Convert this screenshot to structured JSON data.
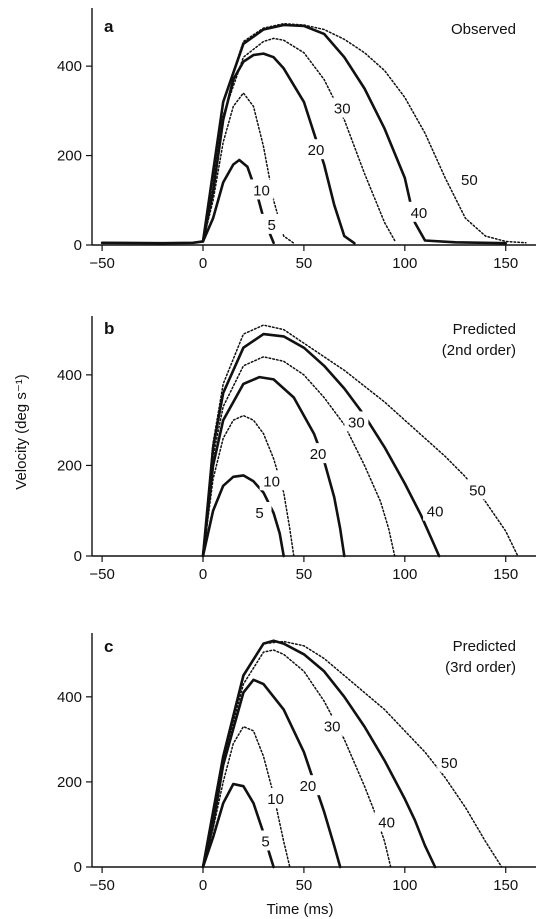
{
  "ylabel": "Velocity (deg s⁻¹)",
  "xlabel": "Time (ms)",
  "chart_data": [
    {
      "type": "line",
      "panel": "a",
      "title": "Observed",
      "xlim": [
        -55,
        165
      ],
      "ylim": [
        0,
        530
      ],
      "xticks": [
        -50,
        0,
        50,
        100,
        150
      ],
      "xtick_labels": [
        "−50",
        "0",
        "50",
        "100",
        "150"
      ],
      "yticks": [
        0,
        200,
        400
      ],
      "ytick_labels": [
        "0",
        "200",
        "400"
      ],
      "series": [
        {
          "name": "5",
          "style": "solid",
          "x": [
            -50,
            -20,
            -5,
            0,
            5,
            10,
            15,
            18,
            22,
            27,
            30,
            35
          ],
          "y": [
            5,
            4,
            5,
            8,
            60,
            140,
            180,
            190,
            175,
            110,
            60,
            5
          ]
        },
        {
          "name": "10",
          "style": "dotted",
          "x": [
            0,
            5,
            10,
            15,
            20,
            25,
            30,
            35,
            40,
            45
          ],
          "y": [
            8,
            100,
            230,
            310,
            340,
            310,
            220,
            100,
            20,
            4
          ]
        },
        {
          "name": "20",
          "style": "solid",
          "x": [
            0,
            5,
            10,
            15,
            20,
            25,
            30,
            35,
            40,
            50,
            55,
            60,
            65,
            70,
            75
          ],
          "y": [
            8,
            120,
            280,
            370,
            410,
            425,
            428,
            420,
            395,
            320,
            250,
            180,
            90,
            20,
            4
          ]
        },
        {
          "name": "30",
          "style": "dotted",
          "x": [
            0,
            10,
            20,
            30,
            35,
            40,
            50,
            60,
            70,
            80,
            90,
            95
          ],
          "y": [
            8,
            290,
            420,
            455,
            462,
            458,
            430,
            370,
            280,
            160,
            50,
            10
          ]
        },
        {
          "name": "40",
          "style": "solid",
          "x": [
            0,
            10,
            20,
            30,
            40,
            50,
            60,
            70,
            80,
            90,
            100,
            105,
            110,
            125,
            150
          ],
          "y": [
            8,
            320,
            450,
            482,
            492,
            490,
            472,
            420,
            350,
            260,
            150,
            50,
            10,
            6,
            4
          ]
        },
        {
          "name": "50",
          "style": "dotted",
          "x": [
            0,
            10,
            20,
            30,
            40,
            50,
            60,
            70,
            80,
            90,
            100,
            110,
            120,
            130,
            140,
            150,
            160
          ],
          "y": [
            8,
            320,
            455,
            485,
            495,
            492,
            482,
            460,
            430,
            390,
            330,
            250,
            150,
            60,
            20,
            8,
            5
          ]
        }
      ],
      "curve_labels": [
        {
          "text": "5",
          "x": 34,
          "y": 45
        },
        {
          "text": "10",
          "x": 29,
          "y": 122
        },
        {
          "text": "20",
          "x": 56,
          "y": 212
        },
        {
          "text": "30",
          "x": 69,
          "y": 305
        },
        {
          "text": "40",
          "x": 107,
          "y": 72
        },
        {
          "text": "50",
          "x": 132,
          "y": 145
        }
      ]
    },
    {
      "type": "line",
      "panel": "b",
      "title": "Predicted (2nd order)",
      "title_lines": [
        "Predicted",
        "(2nd order)"
      ],
      "xlim": [
        -55,
        165
      ],
      "ylim": [
        0,
        530
      ],
      "xticks": [
        -50,
        0,
        50,
        100,
        150
      ],
      "xtick_labels": [
        "−50",
        "0",
        "50",
        "100",
        "150"
      ],
      "yticks": [
        0,
        200,
        400
      ],
      "ytick_labels": [
        "0",
        "200",
        "400"
      ],
      "series": [
        {
          "name": "5",
          "style": "solid",
          "x": [
            0,
            5,
            10,
            15,
            20,
            25,
            30,
            35,
            38,
            40
          ],
          "y": [
            0,
            100,
            155,
            175,
            178,
            165,
            140,
            95,
            50,
            0
          ]
        },
        {
          "name": "10",
          "style": "dotted",
          "x": [
            0,
            5,
            10,
            15,
            20,
            25,
            30,
            35,
            40,
            43,
            45
          ],
          "y": [
            0,
            170,
            260,
            300,
            310,
            300,
            270,
            215,
            140,
            60,
            0
          ]
        },
        {
          "name": "20",
          "style": "solid",
          "x": [
            0,
            5,
            10,
            20,
            28,
            35,
            45,
            55,
            60,
            65,
            68,
            70
          ],
          "y": [
            0,
            200,
            300,
            380,
            395,
            390,
            350,
            270,
            210,
            130,
            60,
            0
          ]
        },
        {
          "name": "30",
          "style": "dotted",
          "x": [
            0,
            5,
            10,
            20,
            30,
            40,
            50,
            60,
            70,
            80,
            88,
            92,
            95
          ],
          "y": [
            0,
            220,
            330,
            420,
            440,
            430,
            400,
            350,
            290,
            200,
            120,
            60,
            0
          ]
        },
        {
          "name": "40",
          "style": "solid",
          "x": [
            0,
            5,
            10,
            20,
            30,
            40,
            50,
            60,
            70,
            80,
            90,
            100,
            108,
            113,
            117
          ],
          "y": [
            0,
            240,
            360,
            460,
            490,
            485,
            460,
            420,
            370,
            310,
            240,
            160,
            90,
            40,
            0
          ]
        },
        {
          "name": "50",
          "style": "dotted",
          "x": [
            0,
            5,
            10,
            20,
            30,
            40,
            50,
            60,
            70,
            80,
            90,
            100,
            110,
            120,
            130,
            140,
            150,
            156
          ],
          "y": [
            0,
            250,
            380,
            490,
            510,
            500,
            470,
            440,
            410,
            375,
            340,
            300,
            260,
            220,
            175,
            120,
            55,
            0
          ]
        }
      ],
      "curve_labels": [
        {
          "text": "5",
          "x": 28,
          "y": 95
        },
        {
          "text": "10",
          "x": 34,
          "y": 165
        },
        {
          "text": "20",
          "x": 57,
          "y": 225
        },
        {
          "text": "30",
          "x": 76,
          "y": 295
        },
        {
          "text": "40",
          "x": 115,
          "y": 98
        },
        {
          "text": "50",
          "x": 136,
          "y": 145
        }
      ]
    },
    {
      "type": "line",
      "panel": "c",
      "title": "Predicted (3rd order)",
      "title_lines": [
        "Predicted",
        "(3rd order)"
      ],
      "xlim": [
        -55,
        165
      ],
      "ylim": [
        0,
        550
      ],
      "xticks": [
        -50,
        0,
        50,
        100,
        150
      ],
      "xtick_labels": [
        "−50",
        "0",
        "50",
        "100",
        "150"
      ],
      "yticks": [
        0,
        200,
        400
      ],
      "ytick_labels": [
        "0",
        "200",
        "400"
      ],
      "series": [
        {
          "name": "5",
          "style": "solid",
          "x": [
            0,
            5,
            10,
            15,
            20,
            25,
            30,
            33,
            35
          ],
          "y": [
            0,
            70,
            150,
            195,
            190,
            150,
            80,
            30,
            0
          ]
        },
        {
          "name": "10",
          "style": "dotted",
          "x": [
            0,
            5,
            10,
            15,
            20,
            25,
            30,
            35,
            40,
            43
          ],
          "y": [
            0,
            90,
            200,
            290,
            330,
            320,
            260,
            170,
            60,
            0
          ]
        },
        {
          "name": "20",
          "style": "solid",
          "x": [
            0,
            5,
            10,
            20,
            25,
            30,
            40,
            50,
            55,
            60,
            65,
            68
          ],
          "y": [
            0,
            100,
            240,
            410,
            440,
            430,
            370,
            270,
            200,
            130,
            50,
            0
          ]
        },
        {
          "name": "30",
          "style": "dotted",
          "x": [
            0,
            10,
            20,
            30,
            35,
            40,
            50,
            60,
            70,
            80,
            85,
            90,
            93
          ],
          "y": [
            0,
            250,
            430,
            505,
            510,
            500,
            460,
            390,
            300,
            190,
            130,
            60,
            0
          ]
        },
        {
          "name": "40",
          "style": "solid",
          "x": [
            0,
            10,
            20,
            30,
            35,
            40,
            50,
            60,
            70,
            80,
            90,
            100,
            105,
            110,
            115
          ],
          "y": [
            0,
            260,
            450,
            525,
            532,
            525,
            500,
            460,
            400,
            330,
            250,
            160,
            110,
            50,
            0
          ]
        },
        {
          "name": "50",
          "style": "dotted",
          "x": [
            0,
            10,
            20,
            30,
            40,
            50,
            60,
            70,
            80,
            90,
            100,
            110,
            120,
            130,
            140,
            148
          ],
          "y": [
            0,
            260,
            450,
            525,
            530,
            520,
            490,
            450,
            410,
            370,
            320,
            270,
            210,
            140,
            60,
            0
          ]
        }
      ],
      "curve_labels": [
        {
          "text": "5",
          "x": 31,
          "y": 60
        },
        {
          "text": "10",
          "x": 36,
          "y": 160
        },
        {
          "text": "20",
          "x": 52,
          "y": 190
        },
        {
          "text": "30",
          "x": 64,
          "y": 330
        },
        {
          "text": "40",
          "x": 91,
          "y": 105
        },
        {
          "text": "50",
          "x": 122,
          "y": 245
        }
      ]
    }
  ]
}
